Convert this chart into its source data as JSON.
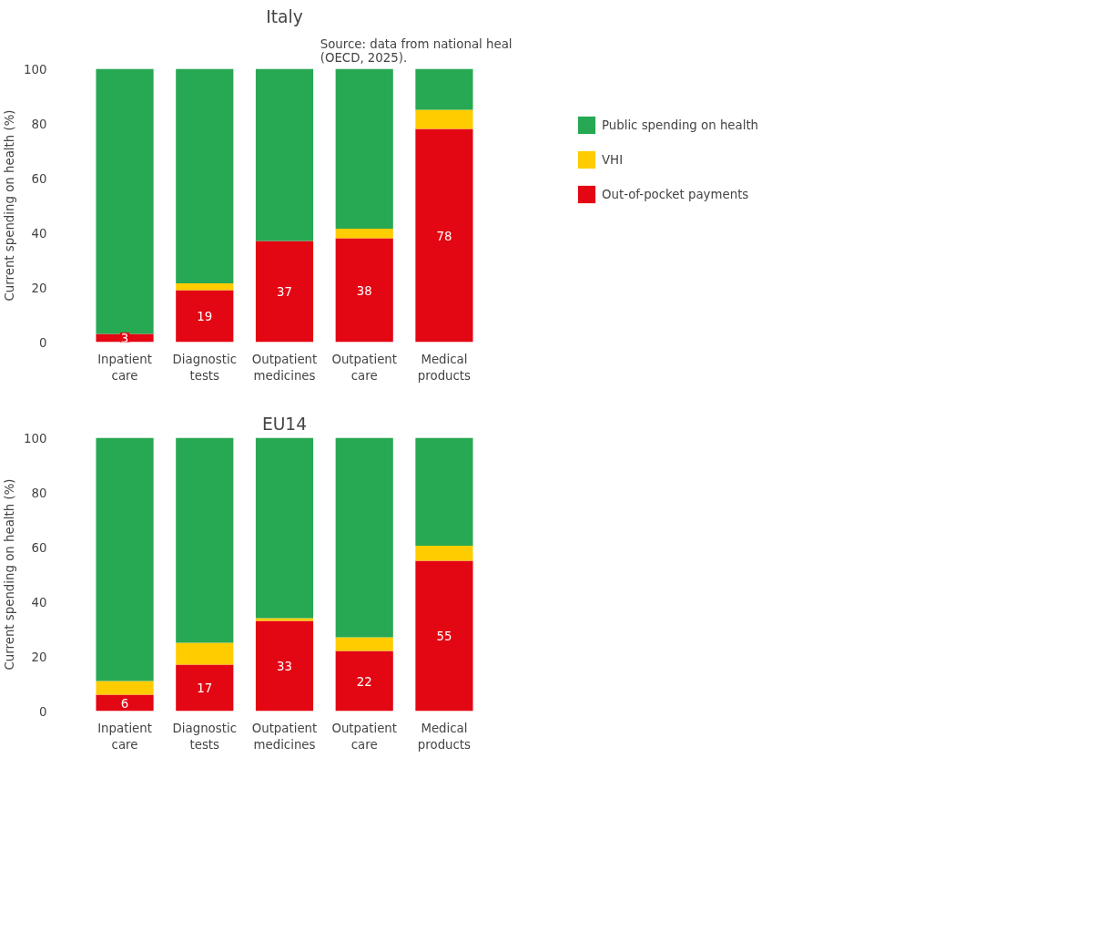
{
  "chart_data": [
    {
      "type": "bar",
      "stacked": true,
      "title": "Italy",
      "ylabel": "Current spending on health (%)",
      "categories": [
        "Inpatient care",
        "Diagnostic tests",
        "Outpatient medicines",
        "Outpatient care",
        "Medical products"
      ],
      "ylim": [
        0,
        100
      ],
      "yticks": [
        0,
        20,
        40,
        60,
        80,
        100
      ],
      "legend": "right",
      "annotations": [
        "Source: data from national heal\n(OECD, 2025)."
      ],
      "series": [
        {
          "name": "Out-of-pocket payments",
          "color": "#e30613",
          "values": [
            3,
            19,
            37,
            38,
            78
          ],
          "value_labels": [
            "3",
            "19",
            "37",
            "38",
            "78"
          ]
        },
        {
          "name": "VHI",
          "color": "#ffcc00",
          "values": [
            0,
            2.5,
            0,
            3.5,
            7
          ]
        },
        {
          "name": "Public spending on health",
          "color": "#27a853",
          "values": [
            97,
            78.5,
            63,
            58.5,
            15
          ]
        }
      ]
    },
    {
      "type": "bar",
      "stacked": true,
      "title": "EU14",
      "ylabel": "Current spending on health (%)",
      "categories": [
        "Inpatient care",
        "Diagnostic tests",
        "Outpatient medicines",
        "Outpatient care",
        "Medical products"
      ],
      "ylim": [
        0,
        100
      ],
      "yticks": [
        0,
        20,
        40,
        60,
        80,
        100
      ],
      "series": [
        {
          "color": "#e30613",
          "values": [
            6,
            17,
            33,
            22,
            55
          ],
          "value_labels": [
            "6",
            "17",
            "33",
            "22",
            "55"
          ]
        },
        {
          "color": "#ffcc00",
          "values": [
            5,
            8,
            1,
            5,
            5.5
          ]
        },
        {
          "color": "#27a853",
          "values": [
            89,
            75,
            66,
            73,
            39.5
          ]
        }
      ]
    }
  ]
}
